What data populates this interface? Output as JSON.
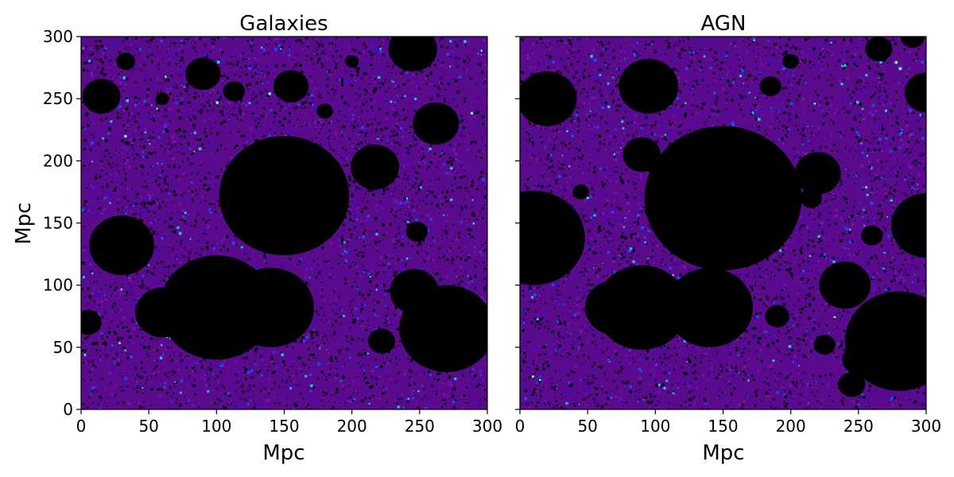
{
  "chart_data": [
    {
      "type": "heatmap",
      "title": "Galaxies",
      "xlabel": "Mpc",
      "ylabel": "Mpc",
      "xlim": [
        0,
        300
      ],
      "ylim": [
        0,
        300
      ],
      "xticks": [
        "0",
        "50",
        "100",
        "150",
        "200",
        "250",
        "300"
      ],
      "yticks": [
        "0",
        "50",
        "100",
        "150",
        "200",
        "250",
        "300"
      ],
      "colormap": [
        "#000000",
        "#2a0044",
        "#5a0a8c",
        "#7a12aa",
        "#3010c8",
        "#1a50ff",
        "#20c8e8",
        "#60ffb0"
      ],
      "ionized_bubbles": [
        {
          "cx": 150,
          "cy": 172,
          "r": 48
        },
        {
          "cx": 100,
          "cy": 82,
          "r": 42
        },
        {
          "cx": 60,
          "cy": 78,
          "r": 20
        },
        {
          "cx": 140,
          "cy": 82,
          "r": 32
        },
        {
          "cx": 30,
          "cy": 132,
          "r": 24
        },
        {
          "cx": 270,
          "cy": 65,
          "r": 35
        },
        {
          "cx": 246,
          "cy": 95,
          "r": 18
        },
        {
          "cx": 262,
          "cy": 230,
          "r": 17
        },
        {
          "cx": 245,
          "cy": 290,
          "r": 18
        },
        {
          "cx": 15,
          "cy": 252,
          "r": 14
        },
        {
          "cx": 90,
          "cy": 270,
          "r": 13
        },
        {
          "cx": 155,
          "cy": 260,
          "r": 13
        },
        {
          "cx": 217,
          "cy": 195,
          "r": 18
        },
        {
          "cx": 248,
          "cy": 143,
          "r": 8
        },
        {
          "cx": 222,
          "cy": 55,
          "r": 10
        },
        {
          "cx": 33,
          "cy": 280,
          "r": 7
        },
        {
          "cx": 113,
          "cy": 256,
          "r": 8
        },
        {
          "cx": 180,
          "cy": 240,
          "r": 6
        },
        {
          "cx": 60,
          "cy": 250,
          "r": 5
        },
        {
          "cx": 200,
          "cy": 280,
          "r": 5
        },
        {
          "cx": 5,
          "cy": 70,
          "r": 10
        }
      ]
    },
    {
      "type": "heatmap",
      "title": "AGN",
      "xlabel": "Mpc",
      "ylabel": "",
      "xlim": [
        0,
        300
      ],
      "ylim": [
        0,
        300
      ],
      "xticks": [
        "0",
        "50",
        "100",
        "150",
        "200",
        "250",
        "300"
      ],
      "yticks": [],
      "colormap": [
        "#000000",
        "#2a0044",
        "#5a0a8c",
        "#7a12aa",
        "#3010c8",
        "#1a50ff",
        "#20c8e8",
        "#60ffb0"
      ],
      "ionized_bubbles": [
        {
          "cx": 150,
          "cy": 170,
          "r": 58
        },
        {
          "cx": 90,
          "cy": 82,
          "r": 34
        },
        {
          "cx": 140,
          "cy": 82,
          "r": 32
        },
        {
          "cx": 70,
          "cy": 82,
          "r": 22
        },
        {
          "cx": 10,
          "cy": 138,
          "r": 38
        },
        {
          "cx": 20,
          "cy": 250,
          "r": 22
        },
        {
          "cx": 95,
          "cy": 260,
          "r": 22
        },
        {
          "cx": 280,
          "cy": 55,
          "r": 40
        },
        {
          "cx": 240,
          "cy": 100,
          "r": 19
        },
        {
          "cx": 300,
          "cy": 255,
          "r": 16
        },
        {
          "cx": 300,
          "cy": 148,
          "r": 26
        },
        {
          "cx": 220,
          "cy": 190,
          "r": 17
        },
        {
          "cx": 90,
          "cy": 205,
          "r": 14
        },
        {
          "cx": 250,
          "cy": 40,
          "r": 12
        },
        {
          "cx": 225,
          "cy": 52,
          "r": 8
        },
        {
          "cx": 245,
          "cy": 20,
          "r": 10
        },
        {
          "cx": 265,
          "cy": 290,
          "r": 10
        },
        {
          "cx": 290,
          "cy": 300,
          "r": 9
        },
        {
          "cx": 190,
          "cy": 75,
          "r": 9
        },
        {
          "cx": 185,
          "cy": 260,
          "r": 8
        },
        {
          "cx": 215,
          "cy": 170,
          "r": 8
        },
        {
          "cx": 260,
          "cy": 140,
          "r": 8
        },
        {
          "cx": 45,
          "cy": 175,
          "r": 6
        },
        {
          "cx": 200,
          "cy": 280,
          "r": 6
        }
      ]
    }
  ]
}
